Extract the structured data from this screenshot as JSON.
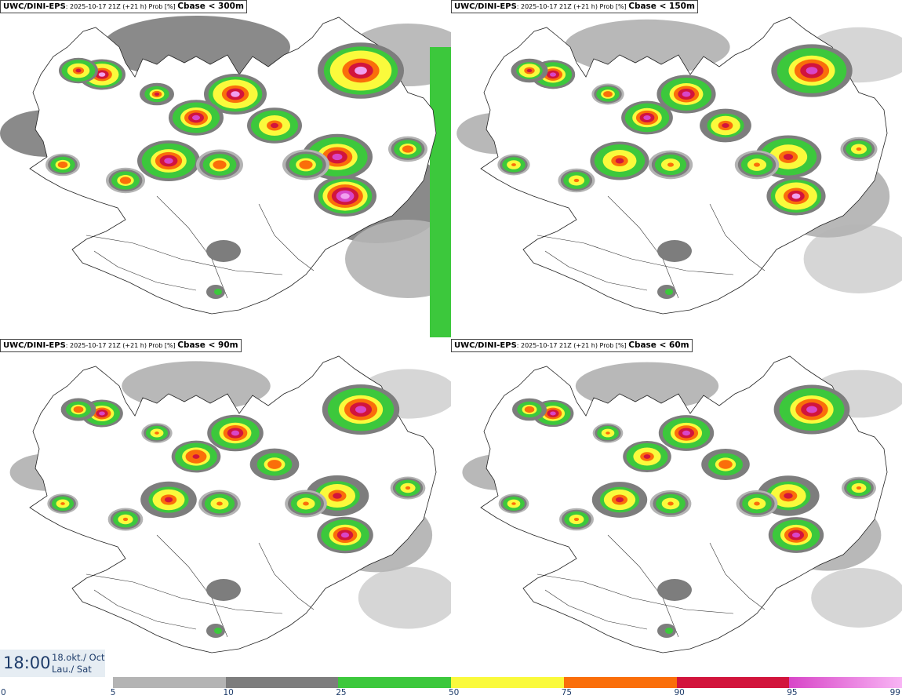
{
  "panels": [
    {
      "model": "UWC/DINI-EPS",
      "meta": ": 2025-10-17 21Z (+21 h) Prob [%] ",
      "variable": "Cbase < 300m",
      "level": 1.0
    },
    {
      "model": "UWC/DINI-EPS",
      "meta": ": 2025-10-17 21Z (+21 h) Prob [%] ",
      "variable": "Cbase < 150m",
      "level": 0.8
    },
    {
      "model": "UWC/DINI-EPS",
      "meta": ": 2025-10-17 21Z (+21 h) Prob [%] ",
      "variable": "Cbase < 90m",
      "level": 0.65
    },
    {
      "model": "UWC/DINI-EPS",
      "meta": ": 2025-10-17 21Z (+21 h) Prob [%] ",
      "variable": "Cbase < 60m",
      "level": 0.6
    }
  ],
  "time": {
    "hour": "18:00",
    "date_line1": "18.okt./ Oct",
    "date_line2": "Lau./ Sat"
  },
  "colorbar": {
    "ticks": [
      "0",
      "5",
      "10",
      "25",
      "50",
      "75",
      "90",
      "95",
      "99"
    ],
    "bins": [
      {
        "from": "0",
        "to": "5",
        "color": "#ffffff"
      },
      {
        "from": "5",
        "to": "10",
        "color": "#b4b4b4"
      },
      {
        "from": "10",
        "to": "25",
        "color": "#7d7d7d"
      },
      {
        "from": "25",
        "to": "50",
        "color": "#3cc83c"
      },
      {
        "from": "50",
        "to": "75",
        "color": "#fafa3c"
      },
      {
        "from": "75",
        "to": "90",
        "color": "#fa6e0a"
      },
      {
        "from": "90",
        "to": "95",
        "color": "#d2143c"
      },
      {
        "from": "95",
        "to": "99",
        "color": "#d846c8"
      }
    ],
    "end_color": "#f8b4f4"
  },
  "colors": {
    "light_gray": "#b4b4b4",
    "dark_gray": "#7d7d7d",
    "green": "#3cc83c",
    "yellow": "#fafa3c",
    "orange": "#fa6e0a",
    "red": "#d2143c",
    "magenta": "#d846c8",
    "pink": "#f0a0f0",
    "text_blue": "#1e3c6a"
  }
}
